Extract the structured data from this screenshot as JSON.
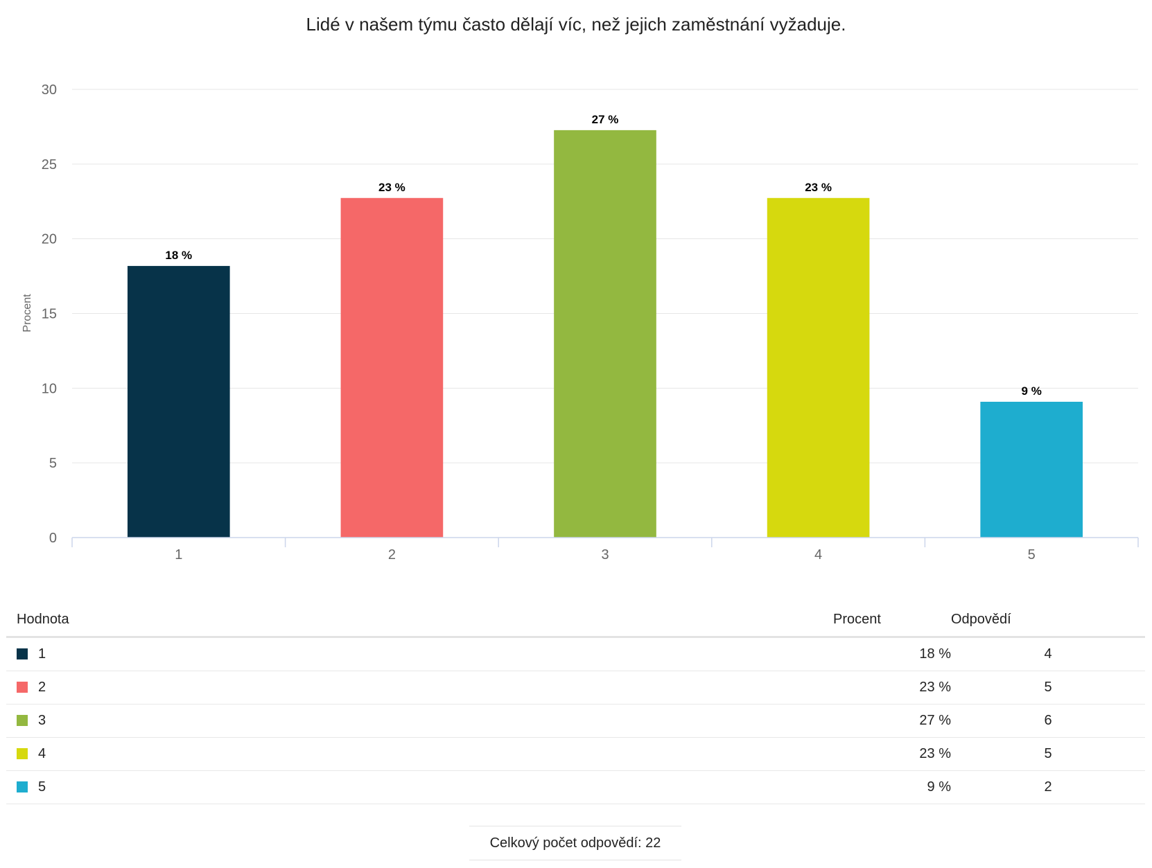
{
  "chart_data": {
    "type": "bar",
    "title": "Lidé v našem týmu často dělají víc, než jejich zaměstnání vyžaduje.",
    "ylabel": "Procent",
    "xlabel": "",
    "categories": [
      "1",
      "2",
      "3",
      "4",
      "5"
    ],
    "values": [
      18.18,
      22.73,
      27.27,
      22.73,
      9.09
    ],
    "data_labels": [
      "18 %",
      "23 %",
      "27 %",
      "23 %",
      "9 %"
    ],
    "colors": [
      "#073349",
      "#f56868",
      "#93b840",
      "#d6d90e",
      "#1eadcf"
    ],
    "ylim": [
      0,
      30
    ],
    "yticks": [
      "0",
      "5",
      "10",
      "15",
      "20",
      "25",
      "30"
    ],
    "grid": true,
    "legend": "none"
  },
  "table": {
    "headers": {
      "value": "Hodnota",
      "percent": "Procent",
      "responses": "Odpovědí"
    },
    "rows": [
      {
        "value": "1",
        "percent": "18 %",
        "responses": "4",
        "color": "#073349"
      },
      {
        "value": "2",
        "percent": "23 %",
        "responses": "5",
        "color": "#f56868"
      },
      {
        "value": "3",
        "percent": "27 %",
        "responses": "6",
        "color": "#93b840"
      },
      {
        "value": "4",
        "percent": "23 %",
        "responses": "5",
        "color": "#d6d90e"
      },
      {
        "value": "5",
        "percent": "9 %",
        "responses": "2",
        "color": "#1eadcf"
      }
    ]
  },
  "total": {
    "label": "Celkový počet odpovědí:",
    "value": "22"
  }
}
